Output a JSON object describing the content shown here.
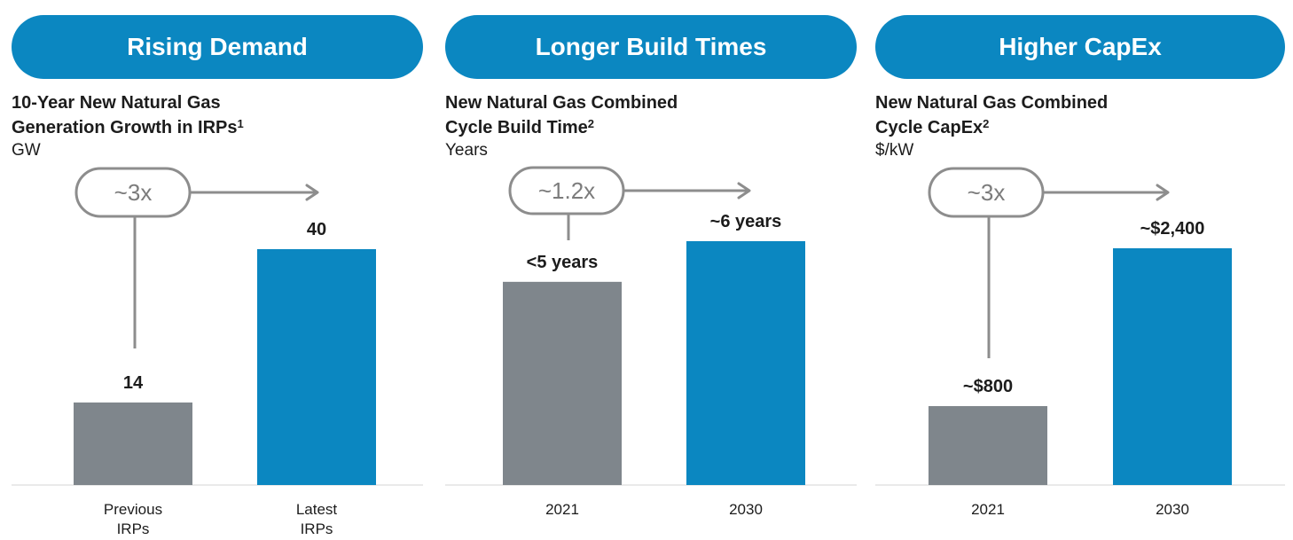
{
  "colors": {
    "header_blue": "#0b87c1",
    "bar_gray": "#7f868c",
    "bar_blue": "#0b87c1",
    "connector_gray": "#8d8d8d"
  },
  "panels": [
    {
      "header": "Rising Demand",
      "title_line1": "10-Year New Natural Gas",
      "title_line2": "Generation Growth in IRPs",
      "title_sup": "1",
      "unit": "GW",
      "multiplier": "~3x"
    },
    {
      "header": "Longer Build Times",
      "title_line1": "New Natural Gas Combined",
      "title_line2": "Cycle Build Time",
      "title_sup": "2",
      "unit": "Years",
      "multiplier": "~1.2x"
    },
    {
      "header": "Higher CapEx",
      "title_line1": "New Natural Gas Combined",
      "title_line2": "Cycle CapEx",
      "title_sup": "2",
      "unit": "$/kW",
      "multiplier": "~3x"
    }
  ],
  "chart_data": [
    {
      "type": "bar",
      "title": "10-Year New Natural Gas Generation Growth in IRPs",
      "ylabel": "GW",
      "categories": [
        [
          "Previous",
          "IRPs"
        ],
        [
          "Latest",
          "IRPs"
        ]
      ],
      "values": [
        14,
        40
      ],
      "data_labels": [
        "14",
        "40"
      ],
      "colors": [
        "gray",
        "blue"
      ],
      "ylim": [
        0,
        40
      ],
      "grid": false
    },
    {
      "type": "bar",
      "title": "New Natural Gas Combined Cycle Build Time",
      "ylabel": "Years",
      "categories": [
        [
          "2021"
        ],
        [
          "2030"
        ]
      ],
      "values": [
        5,
        6
      ],
      "data_labels": [
        "<5 years",
        "~6 years"
      ],
      "colors": [
        "gray",
        "blue"
      ],
      "ylim": [
        0,
        6
      ],
      "grid": false
    },
    {
      "type": "bar",
      "title": "New Natural Gas Combined Cycle CapEx",
      "ylabel": "$/kW",
      "categories": [
        [
          "2021"
        ],
        [
          "2030"
        ]
      ],
      "values": [
        800,
        2400
      ],
      "data_labels": [
        "~$800",
        "~$2,400"
      ],
      "colors": [
        "gray",
        "blue"
      ],
      "ylim": [
        0,
        2400
      ],
      "grid": false
    }
  ]
}
